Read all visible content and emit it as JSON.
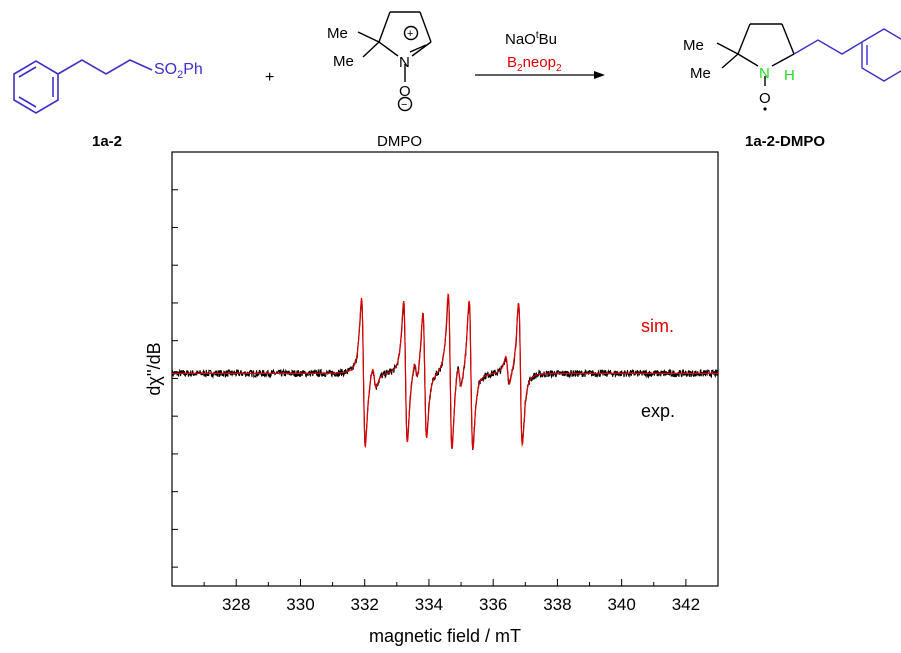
{
  "scheme": {
    "reactant": {
      "group": "SO",
      "sub": "2",
      "tail": "Ph",
      "label": "1a-2",
      "color": "#3b2fc9"
    },
    "plus": "+",
    "trap": {
      "me_top": "Me",
      "me_bottom": "Me",
      "n": "N",
      "o": "O",
      "charge_plus": "+",
      "charge_minus": "−",
      "label": "DMPO"
    },
    "arrow": {
      "reagent_top": "NaO",
      "reagent_top_sup": "t",
      "reagent_top_tail": "Bu",
      "reagent_bottom": "B",
      "reagent_bottom_sub1": "2",
      "reagent_bottom_mid": "neop",
      "reagent_bottom_sub2": "2",
      "reagent_bottom_color": "#e00000"
    },
    "product": {
      "me_top": "Me",
      "me_bottom": "Me",
      "n": "N",
      "h": "H",
      "o": "O",
      "label": "1a-2-DMPO",
      "highlight_color": "#22e022"
    }
  },
  "chart_data": {
    "type": "line",
    "xlabel": "magnetic field / mT",
    "ylabel": "dχ''/dB",
    "xlim": [
      326,
      343
    ],
    "xticks": [
      328,
      330,
      332,
      334,
      336,
      338,
      340,
      342
    ],
    "ylim": [
      -1.2,
      1.25
    ],
    "baseline": 0,
    "series": [
      {
        "name": "sim.",
        "color": "#e00000",
        "lines": [
          {
            "center": 331.96,
            "amp": 1.0
          },
          {
            "center": 333.27,
            "amp": 0.95
          },
          {
            "center": 333.87,
            "amp": 0.85
          },
          {
            "center": 334.66,
            "amp": 1.05
          },
          {
            "center": 335.31,
            "amp": 1.0
          },
          {
            "center": 336.85,
            "amp": 0.95
          },
          {
            "center": 334.95,
            "amp": 0.18
          },
          {
            "center": 336.45,
            "amp": 0.2
          },
          {
            "center": 332.3,
            "amp": 0.15
          },
          {
            "center": 333.6,
            "amp": 0.15
          }
        ],
        "width": 0.1
      },
      {
        "name": "exp.",
        "color": "#000000",
        "noise": 0.02
      }
    ]
  }
}
